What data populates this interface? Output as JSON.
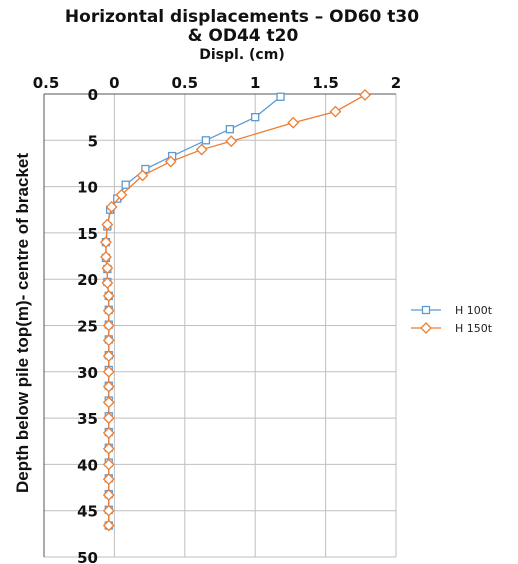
{
  "chart_data": {
    "type": "line",
    "title_line1": "Horizontal displacements – OD60 t30",
    "title_line2": "& OD44 t20",
    "xlabel": "Displ. (cm)",
    "ylabel": "Depth below pile top(m)- centre of bracket",
    "xlim": [
      -0.5,
      2
    ],
    "ylim": [
      0,
      50
    ],
    "y_inverted": true,
    "x_axis_position": "top",
    "grid": true,
    "legend_position": "right",
    "x_ticks": [
      {
        "value": -0.5,
        "label": "0.5"
      },
      {
        "value": 0,
        "label": "0"
      },
      {
        "value": 0.5,
        "label": "0.5"
      },
      {
        "value": 1,
        "label": "1"
      },
      {
        "value": 1.5,
        "label": "1.5"
      },
      {
        "value": 2,
        "label": "2"
      }
    ],
    "y_ticks": [
      {
        "value": 0,
        "label": "0"
      },
      {
        "value": 5,
        "label": "5"
      },
      {
        "value": 10,
        "label": "10"
      },
      {
        "value": 15,
        "label": "15"
      },
      {
        "value": 20,
        "label": "20"
      },
      {
        "value": 25,
        "label": "25"
      },
      {
        "value": 30,
        "label": "30"
      },
      {
        "value": 35,
        "label": "35"
      },
      {
        "value": 40,
        "label": "40"
      },
      {
        "value": 45,
        "label": "45"
      },
      {
        "value": 50,
        "label": "50"
      }
    ],
    "series": [
      {
        "name": "H 100t",
        "color": "#5b9bd5",
        "marker": "square",
        "points": [
          [
            1.18,
            0.3
          ],
          [
            1.0,
            2.5
          ],
          [
            0.82,
            3.8
          ],
          [
            0.65,
            5.0
          ],
          [
            0.41,
            6.7
          ],
          [
            0.22,
            8.1
          ],
          [
            0.08,
            9.8
          ],
          [
            0.02,
            11.3
          ],
          [
            -0.03,
            12.5
          ],
          [
            -0.05,
            14.3
          ],
          [
            -0.06,
            16.0
          ],
          [
            -0.06,
            17.7
          ],
          [
            -0.05,
            18.9
          ],
          [
            -0.05,
            20.3
          ],
          [
            -0.04,
            21.8
          ],
          [
            -0.04,
            23.3
          ],
          [
            -0.04,
            24.9
          ],
          [
            -0.04,
            26.5
          ],
          [
            -0.04,
            28.2
          ],
          [
            -0.04,
            29.8
          ],
          [
            -0.04,
            31.5
          ],
          [
            -0.04,
            33.1
          ],
          [
            -0.04,
            34.8
          ],
          [
            -0.04,
            36.5
          ],
          [
            -0.04,
            38.2
          ],
          [
            -0.04,
            39.8
          ],
          [
            -0.04,
            41.5
          ],
          [
            -0.04,
            43.2
          ],
          [
            -0.04,
            44.9
          ],
          [
            -0.04,
            46.6
          ]
        ]
      },
      {
        "name": "H 150t",
        "color": "#ed7d31",
        "marker": "diamond",
        "points": [
          [
            1.78,
            0.1
          ],
          [
            1.57,
            1.9
          ],
          [
            1.27,
            3.1
          ],
          [
            0.83,
            5.1
          ],
          [
            0.62,
            6.0
          ],
          [
            0.4,
            7.3
          ],
          [
            0.2,
            8.8
          ],
          [
            0.05,
            10.9
          ],
          [
            -0.02,
            12.2
          ],
          [
            -0.05,
            14.1
          ],
          [
            -0.06,
            16.0
          ],
          [
            -0.06,
            17.6
          ],
          [
            -0.05,
            18.8
          ],
          [
            -0.05,
            20.4
          ],
          [
            -0.04,
            21.8
          ],
          [
            -0.04,
            23.4
          ],
          [
            -0.04,
            25.0
          ],
          [
            -0.04,
            26.6
          ],
          [
            -0.04,
            28.3
          ],
          [
            -0.04,
            30.0
          ],
          [
            -0.04,
            31.6
          ],
          [
            -0.04,
            33.3
          ],
          [
            -0.04,
            35.0
          ],
          [
            -0.04,
            36.6
          ],
          [
            -0.04,
            38.3
          ],
          [
            -0.04,
            40.0
          ],
          [
            -0.04,
            41.6
          ],
          [
            -0.04,
            43.3
          ],
          [
            -0.04,
            45.0
          ],
          [
            -0.04,
            46.6
          ]
        ]
      }
    ]
  }
}
